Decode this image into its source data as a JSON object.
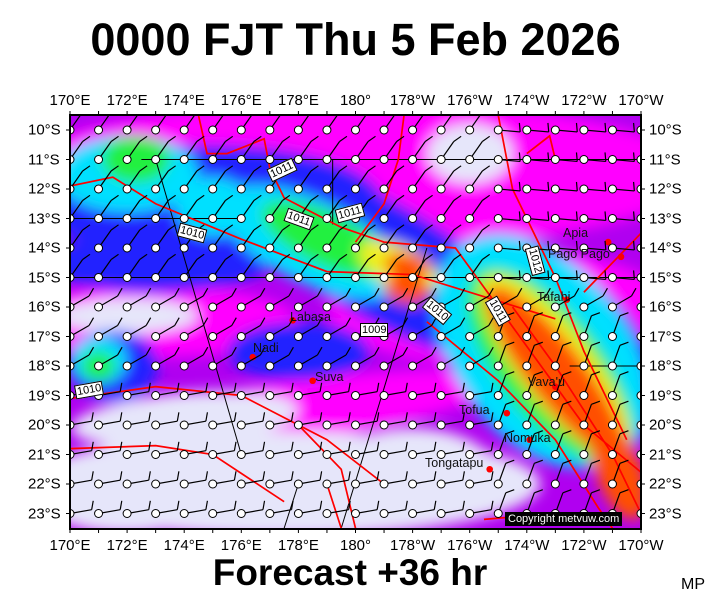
{
  "title": "0000 FJT Thu 5 Feb 2026",
  "footer": "Forecast +36 hr",
  "author_mark": "MP",
  "copyright": "Copyright metvuw.com",
  "lon_labels": [
    "170°E",
    "172°E",
    "174°E",
    "176°E",
    "178°E",
    "180°",
    "178°W",
    "176°W",
    "174°W",
    "172°W",
    "170°W"
  ],
  "lat_labels": [
    "10°S",
    "11°S",
    "12°S",
    "13°S",
    "14°S",
    "15°S",
    "16°S",
    "17°S",
    "18°S",
    "19°S",
    "20°S",
    "21°S",
    "22°S",
    "23°S"
  ],
  "places": [
    "Apia",
    "Pago Pago",
    "Tafahi",
    "Vava'u",
    "Tofua",
    "Nomuka",
    "Tongatapu",
    "Labasa",
    "Nadi",
    "Suva"
  ],
  "isobar_labels": [
    "1011",
    "1011",
    "1011",
    "1010",
    "1009",
    "1010",
    "1012",
    "1011",
    "1010"
  ],
  "colors": {
    "background_field": "#b000f0",
    "magenta": "#ff00ff",
    "dry": "#e6e6fa",
    "blue": "#2020ff",
    "cyan": "#00e0ff",
    "green": "#20f040",
    "yellow": "#f0f020",
    "orange": "#ff5000",
    "isobar": "#ff0000",
    "city_dot": "#ff0000"
  }
}
